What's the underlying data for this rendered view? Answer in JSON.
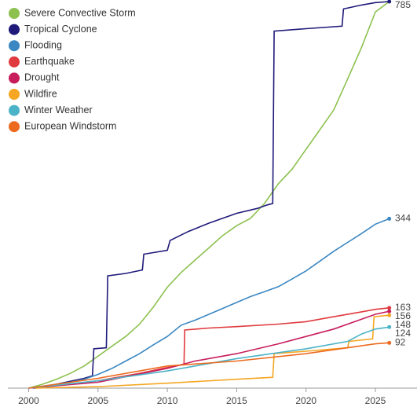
{
  "chart_data": {
    "type": "line",
    "xlim": [
      1998.5,
      2028
    ],
    "ylim": [
      0,
      785
    ],
    "xticks": [
      2000,
      2005,
      2010,
      2015,
      2020,
      2025
    ],
    "legend": "top-left",
    "series": [
      {
        "name": "Severe Convective Storm",
        "color": "#8dc14f",
        "end_label": false,
        "x": [
          2000,
          2001,
          2002,
          2003,
          2004,
          2005,
          2006,
          2007,
          2008,
          2009,
          2010,
          2011,
          2012,
          2013,
          2014,
          2015,
          2016,
          2017,
          2018,
          2019,
          2020,
          2021,
          2022,
          2023,
          2024,
          2025,
          2026
        ],
        "values": [
          0,
          8,
          18,
          30,
          45,
          65,
          85,
          105,
          130,
          165,
          205,
          235,
          260,
          285,
          310,
          330,
          345,
          375,
          415,
          445,
          485,
          525,
          565,
          628,
          692,
          764,
          785
        ]
      },
      {
        "name": "Tropical Cyclone",
        "color": "#1f1a7a",
        "end_label": true,
        "x": [
          2000.3,
          2002,
          2004,
          2004.6,
          2004.7,
          2005.6,
          2005.7,
          2007,
          2008.2,
          2008.3,
          2010,
          2010.2,
          2011.5,
          2013,
          2014,
          2015,
          2016.5,
          2017.2,
          2017.6,
          2017.7,
          2020,
          2022.6,
          2022.7,
          2024,
          2025,
          2026
        ],
        "values": [
          0,
          8,
          20,
          25,
          80,
          82,
          228,
          233,
          240,
          272,
          280,
          300,
          318,
          335,
          345,
          355,
          365,
          372,
          375,
          725,
          730,
          735,
          770,
          778,
          783,
          785
        ]
      },
      {
        "name": "Flooding",
        "color": "#3b87c2",
        "end_label": true,
        "x": [
          2000,
          2001,
          2002,
          2003,
          2004,
          2005,
          2006,
          2007,
          2008,
          2009,
          2010,
          2011,
          2012,
          2013,
          2014,
          2015,
          2016,
          2017,
          2018,
          2019,
          2020,
          2021,
          2022,
          2023,
          2024,
          2025,
          2026
        ],
        "values": [
          0,
          4,
          8,
          12,
          18,
          28,
          40,
          55,
          70,
          88,
          105,
          128,
          138,
          150,
          162,
          174,
          186,
          196,
          206,
          222,
          238,
          258,
          278,
          296,
          314,
          333,
          344
        ]
      },
      {
        "name": "Earthquake",
        "color": "#e03a3e",
        "end_label": true,
        "x": [
          2000.5,
          2003,
          2005,
          2008,
          2010,
          2011.2,
          2011.25,
          2013,
          2015,
          2018,
          2020,
          2022,
          2024,
          2025,
          2026
        ],
        "values": [
          0,
          8,
          15,
          30,
          42,
          48,
          118,
          122,
          125,
          130,
          135,
          145,
          155,
          160,
          163
        ]
      },
      {
        "name": "Drought",
        "color": "#c81d5c",
        "end_label": true,
        "x": [
          2000,
          2005,
          2010,
          2012,
          2015,
          2018,
          2020,
          2022,
          2024,
          2025,
          2026
        ],
        "values": [
          0,
          12,
          40,
          55,
          70,
          90,
          105,
          120,
          140,
          150,
          156
        ]
      },
      {
        "name": "Wildfire",
        "color": "#f5a623",
        "end_label": true,
        "x": [
          2000.5,
          2005,
          2010,
          2015,
          2017.6,
          2017.7,
          2020,
          2023,
          2023.1,
          2024.8,
          2024.9,
          2026
        ],
        "values": [
          0,
          3,
          10,
          18,
          22,
          70,
          75,
          82,
          95,
          100,
          145,
          148
        ]
      },
      {
        "name": "Winter Weather",
        "color": "#4bb3c8",
        "end_label": true,
        "x": [
          2000,
          2005,
          2010,
          2015,
          2020,
          2023,
          2024,
          2025,
          2026
        ],
        "values": [
          0,
          15,
          35,
          60,
          80,
          95,
          110,
          120,
          124
        ]
      },
      {
        "name": "European Windstorm",
        "color": "#ec6a1e",
        "end_label": true,
        "x": [
          2000,
          2005,
          2010,
          2015,
          2020,
          2023,
          2025,
          2026
        ],
        "values": [
          0,
          20,
          45,
          55,
          70,
          82,
          90,
          92
        ]
      }
    ]
  }
}
